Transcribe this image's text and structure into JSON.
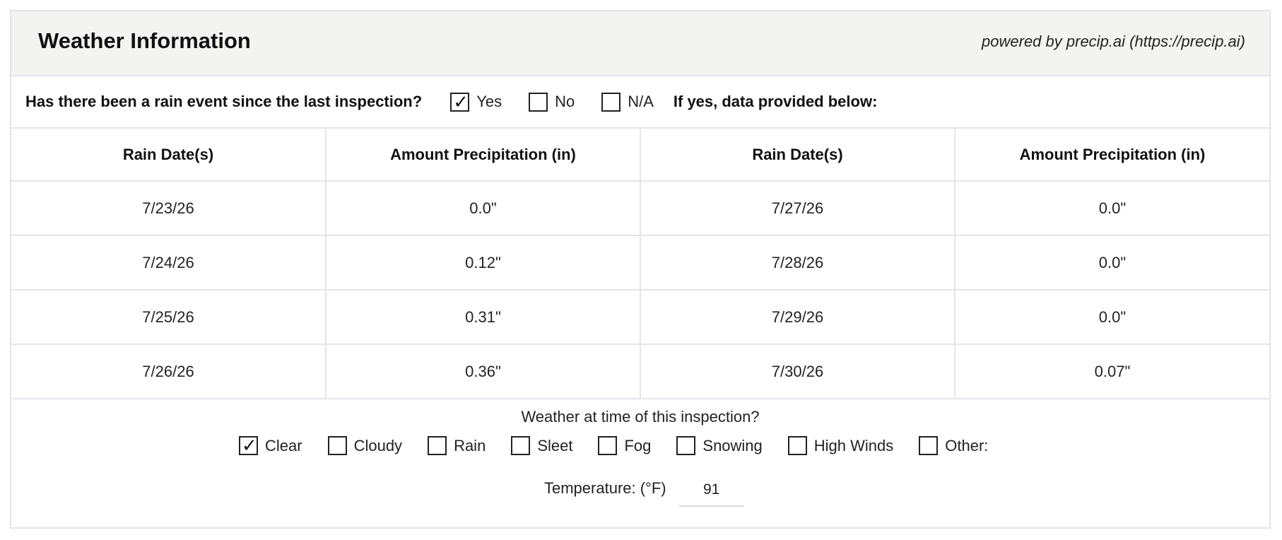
{
  "header": {
    "title": "Weather Information",
    "powered_by": "powered by precip.ai (https://precip.ai)"
  },
  "rain_question": {
    "text": "Has there been a rain event since the last inspection?",
    "options": [
      {
        "label": "Yes",
        "checked": true
      },
      {
        "label": "No",
        "checked": false
      },
      {
        "label": "N/A",
        "checked": false
      }
    ],
    "followup": "If yes, data provided below:"
  },
  "rain_table": {
    "headers": [
      "Rain Date(s)",
      "Amount Precipitation (in)",
      "Rain Date(s)",
      "Amount Precipitation (in)"
    ],
    "rows": [
      [
        "7/23/26",
        "0.0\"",
        "7/27/26",
        "0.0\""
      ],
      [
        "7/24/26",
        "0.12\"",
        "7/28/26",
        "0.0\""
      ],
      [
        "7/25/26",
        "0.31\"",
        "7/29/26",
        "0.0\""
      ],
      [
        "7/26/26",
        "0.36\"",
        "7/30/26",
        "0.07\""
      ]
    ]
  },
  "weather": {
    "question": "Weather at time of this inspection?",
    "options": [
      {
        "label": "Clear",
        "checked": true
      },
      {
        "label": "Cloudy",
        "checked": false
      },
      {
        "label": "Rain",
        "checked": false
      },
      {
        "label": "Sleet",
        "checked": false
      },
      {
        "label": "Fog",
        "checked": false
      },
      {
        "label": "Snowing",
        "checked": false
      },
      {
        "label": "High Winds",
        "checked": false
      },
      {
        "label": "Other:",
        "checked": false
      }
    ],
    "temperature_label": "Temperature: (°F)",
    "temperature_value": "91"
  },
  "check_glyph": "✓"
}
